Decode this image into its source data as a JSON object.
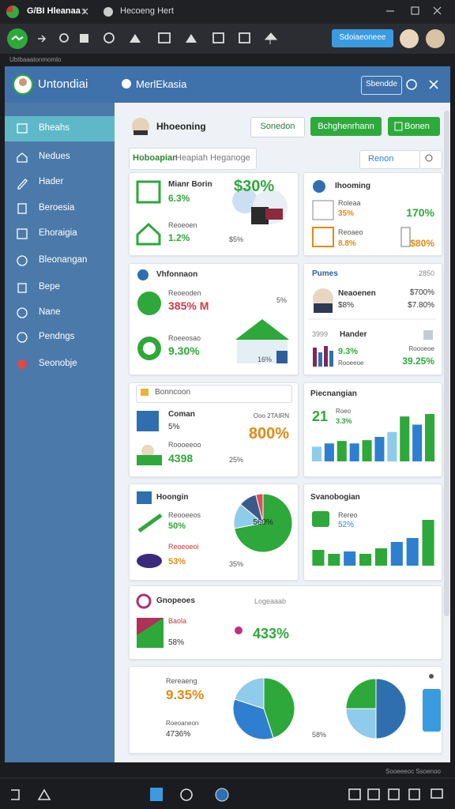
{
  "browser": {
    "tabs": [
      "G/BI Hleanaa :",
      "Hecoeng Hert"
    ],
    "action": "Sdoiaeoneee",
    "status_text": "Ubtbaaatonmomlo"
  },
  "app": {
    "title": "Untondiai",
    "section": "MerlEkasia",
    "button": "Sbendde"
  },
  "sidebar": {
    "items": [
      "Bheahs",
      "Nedues",
      "Hader",
      "Beroesia",
      "Ehoraigia",
      "Bleonangan",
      "Bepe",
      "Nane",
      "Pendngs",
      "Seonobje"
    ]
  },
  "toolbar": {
    "name": "Hhoeoning",
    "buttons": [
      "Sonedon",
      "Bchghenrhann",
      "Bonen"
    ]
  },
  "filter": {
    "label": "Hoboapian",
    "text": "Heapiah Heganoge",
    "button": "Renon"
  },
  "cards": [
    {
      "title": "Mianr Borin",
      "value": "6.3%",
      "sub_label": "Reoeoen",
      "sub_value": "1.2%",
      "big": "$30%",
      "foot": "$5%"
    },
    {
      "title": "Ihooming",
      "rows": [
        {
          "label": "Roleaa",
          "value": "35%",
          "right": "170%"
        },
        {
          "label": "Reoaeo",
          "value": "8.8%",
          "right": "$80%"
        }
      ]
    },
    {
      "title": "Vhfonnaon",
      "rows": [
        {
          "label": "Reoeoden",
          "value": "385% M",
          "right": "5%"
        },
        {
          "label": "Roeeosao",
          "value": "9.30%",
          "right": "16%"
        }
      ]
    },
    {
      "title": "Pumes",
      "code": "2850",
      "person": {
        "label": "Neaoenen",
        "value": "$8%",
        "right": "$700%",
        "right2": "$7.80%"
      },
      "detail": {
        "code": "3999",
        "title": "Hander",
        "value": "9.3%",
        "label": "Rooeeoe",
        "right_label": "Roooeoe",
        "right": "39.25%"
      }
    },
    {
      "search": "Bonncoon",
      "title": "Coman",
      "value": "5%",
      "code": "Ooo 2TAIRN",
      "big": "800%",
      "label": "Roooeeoo",
      "value2": "4398",
      "foot": "25%"
    },
    {
      "title": "Piecnangian",
      "big": "21",
      "label": "Roeo",
      "value": "3.3%",
      "chart": {
        "type": "bar",
        "values": [
          18,
          22,
          25,
          22,
          26,
          30,
          36,
          55,
          45,
          58
        ],
        "colors": [
          "#8fcbea",
          "#2f7fd0",
          "#2ea83a",
          "#2f7fd0",
          "#2ea83a",
          "#2f7fd0",
          "#8fcbea",
          "#2ea83a",
          "#2f7fd0",
          "#2ea83a"
        ],
        "ylim": [
          0,
          60
        ]
      }
    },
    {
      "title": "Hoongin",
      "rows": [
        {
          "label": "Reooeeos",
          "value": "50%"
        },
        {
          "label": "Reoeoeoi",
          "value": "53%"
        }
      ],
      "foot": "35%",
      "chart": {
        "type": "pie",
        "values": [
          72,
          14,
          10,
          4
        ],
        "colors": [
          "#2ea83a",
          "#8fcbea",
          "#3a5a8a",
          "#d9534f"
        ],
        "center": "560%"
      }
    },
    {
      "title": "Svanobogian",
      "label": "Rereo",
      "value": "52%",
      "chart": {
        "type": "bar",
        "values": [
          20,
          15,
          18,
          15,
          22,
          30,
          35,
          58
        ],
        "colors": [
          "#2ea83a",
          "#2ea83a",
          "#2f7fd0",
          "#2ea83a",
          "#2ea83a",
          "#2f7fd0",
          "#2f7fd0",
          "#2ea83a"
        ],
        "ylim": [
          0,
          60
        ]
      }
    },
    {
      "title": "Gnopeoes",
      "note": "Logeaaab",
      "label": "Baola",
      "value": "58%",
      "big": "433%"
    },
    {
      "label": "Rereaeng",
      "big": "9.35%",
      "label2": "Roeoaneon",
      "value2": "4736%",
      "foot": "58%",
      "charts": [
        {
          "type": "pie",
          "values": [
            45,
            35,
            20
          ],
          "colors": [
            "#2ea83a",
            "#2f7fd0",
            "#8fcbea"
          ]
        },
        {
          "type": "pie",
          "values": [
            50,
            25,
            25
          ],
          "colors": [
            "#2f6fb0",
            "#8fcbea",
            "#2ea83a"
          ]
        }
      ]
    }
  ],
  "bottom": {
    "status": "Sooeeeoc Ssoenoo"
  }
}
